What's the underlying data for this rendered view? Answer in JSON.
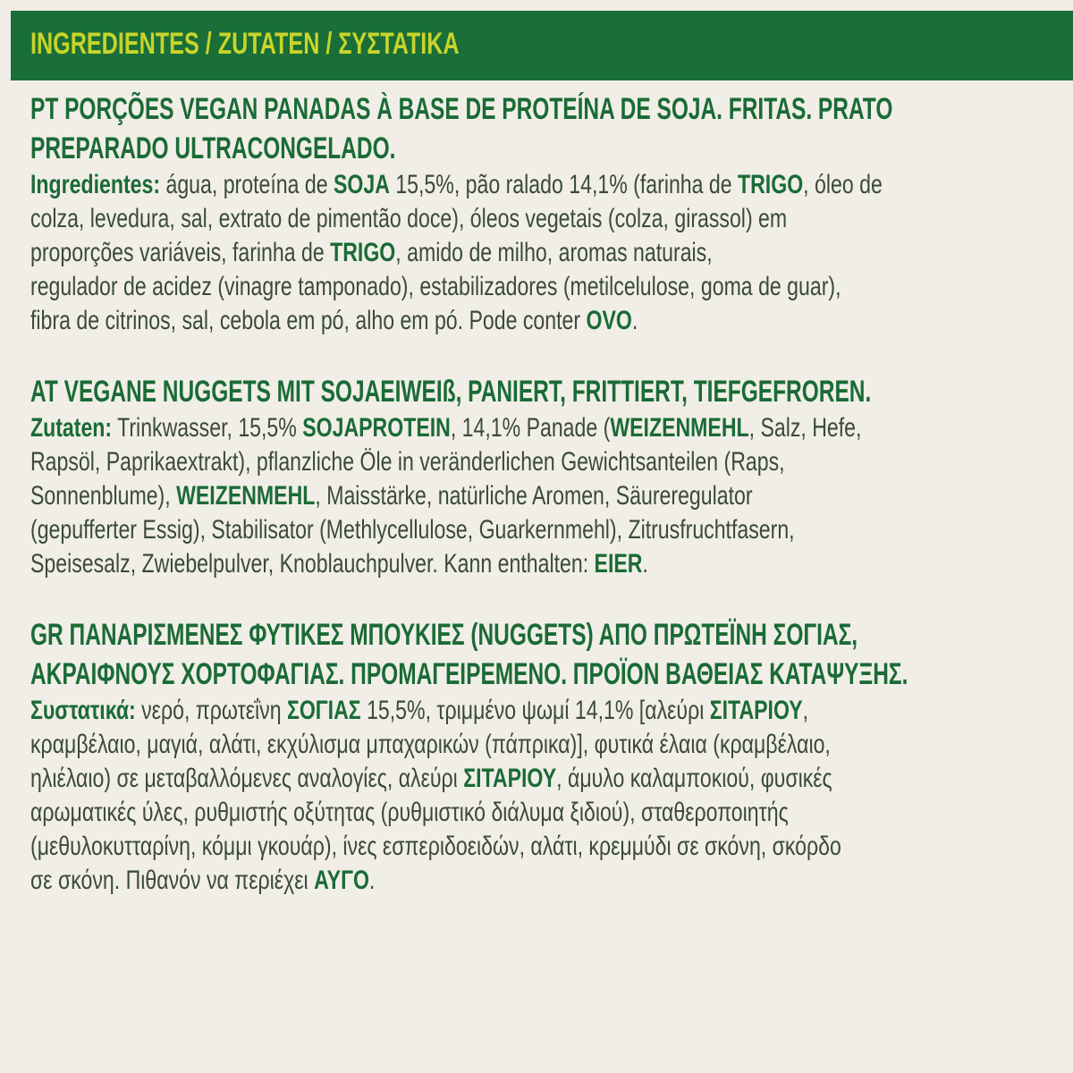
{
  "banner": {
    "title": "INGREDIENTES / ZUTATEN / ΣΥΣΤΑΤΙΚΑ",
    "color": "#1a6e38",
    "title_color": "#c8d42a"
  },
  "sections": [
    {
      "code": "PT",
      "heading": [
        "PT  PORÇÕES VEGAN PANADAS À BASE DE PROTEÍNA DE SOJA. FRITAS. PRATO",
        "PREPARADO ULTRACONGELADO."
      ],
      "lines": [
        [
          {
            "t": "Ingredientes:",
            "b": true
          },
          {
            "t": " água, proteína de "
          },
          {
            "t": "SOJA",
            "b": true
          },
          {
            "t": " 15,5%, pão ralado 14,1% (farinha de "
          },
          {
            "t": "TRIGO",
            "b": true
          },
          {
            "t": ", óleo de"
          }
        ],
        [
          {
            "t": "colza, levedura, sal, extrato de pimentão doce), óleos vegetais (colza, girassol) em"
          }
        ],
        [
          {
            "t": "proporções variáveis, farinha de "
          },
          {
            "t": "TRIGO",
            "b": true
          },
          {
            "t": ", amido de milho, aromas naturais,"
          }
        ],
        [
          {
            "t": "regulador de acidez (vinagre tamponado), estabilizadores (metilcelulose, goma de guar),"
          }
        ],
        [
          {
            "t": "fibra de citrinos, sal, cebola em pó, alho em pó. Pode conter "
          },
          {
            "t": "OVO",
            "b": true
          },
          {
            "t": "."
          }
        ]
      ]
    },
    {
      "code": "AT",
      "heading": [
        "AT  VEGANE NUGGETS MIT SOJAEIWEIß, PANIERT, FRITTIERT, TIEFGEFROREN."
      ],
      "lines": [
        [
          {
            "t": "Zutaten:",
            "b": true
          },
          {
            "t": " Trinkwasser, 15,5% "
          },
          {
            "t": "SOJAPROTEIN",
            "b": true
          },
          {
            "t": ", 14,1% Panade ("
          },
          {
            "t": "WEIZENMEHL",
            "b": true
          },
          {
            "t": ", Salz, Hefe,"
          }
        ],
        [
          {
            "t": "Rapsöl, Paprikaextrakt), pflanzliche Öle in veränderlichen Gewichtsanteilen (Raps,"
          }
        ],
        [
          {
            "t": "Sonnenblume), "
          },
          {
            "t": "WEIZENMEHL",
            "b": true
          },
          {
            "t": ", Maisstärke, natürliche Aromen, Säureregulator"
          }
        ],
        [
          {
            "t": "(gepufferter Essig), Stabilisator (Methlycellulose, Guarkernmehl), Zitrusfruchtfasern,"
          }
        ],
        [
          {
            "t": "Speisesalz, Zwiebelpulver, Knoblauchpulver. Kann enthalten: "
          },
          {
            "t": "EIER",
            "b": true
          },
          {
            "t": "."
          }
        ]
      ]
    },
    {
      "code": "GR",
      "heading": [
        "GR  ΠΑΝΑΡΙΣΜΕΝΕΣ ΦΥΤΙΚΕΣ ΜΠΟΥΚΙΕΣ (NUGGETS) ΑΠΟ ΠΡΩΤΕΪΝΗ ΣΟΓΙΑΣ,",
        "ΑΚΡΑΙΦΝΟΥΣ ΧΟΡΤΟΦΑΓΙΑΣ. ΠΡΟΜΑΓΕΙΡΕΜΕΝΟ. ΠΡΟΪΟΝ ΒΑΘΕΙΑΣ ΚΑΤΑΨΥΞΗΣ."
      ],
      "lines": [
        [
          {
            "t": "Συστατικά:",
            "b": true
          },
          {
            "t": " νερό, πρωτεΐνη "
          },
          {
            "t": "ΣΟΓΙΑΣ",
            "b": true
          },
          {
            "t": " 15,5%, τριμμένο ψωμί 14,1% [αλεύρι "
          },
          {
            "t": "ΣΙΤΑΡΙΟΥ",
            "b": true
          },
          {
            "t": ","
          }
        ],
        [
          {
            "t": "κραμβέλαιο, μαγιά, αλάτι, εκχύλισμα μπαχαρικών (πάπρικα)], φυτικά έλαια (κραμβέλαιο,"
          }
        ],
        [
          {
            "t": "ηλιέλαιο) σε μεταβαλλόμενες αναλογίες, αλεύρι "
          },
          {
            "t": "ΣΙΤΑΡΙΟΥ",
            "b": true
          },
          {
            "t": ", άμυλο καλαμποκιού, φυσικές"
          }
        ],
        [
          {
            "t": "αρωματικές ύλες, ρυθμιστής οξύτητας (ρυθμιστικό διάλυμα ξιδιού), σταθεροποιητής"
          }
        ],
        [
          {
            "t": "(μεθυλοκυτταρίνη, κόμμι γκουάρ), ίνες εσπεριδοειδών, αλάτι, κρεμμύδι σε σκόνη, σκόρδο"
          }
        ],
        [
          {
            "t": "σε σκόνη. Πιθανόν να περιέχει "
          },
          {
            "t": "ΑΥΓΟ",
            "b": true
          },
          {
            "t": "."
          }
        ]
      ]
    }
  ]
}
